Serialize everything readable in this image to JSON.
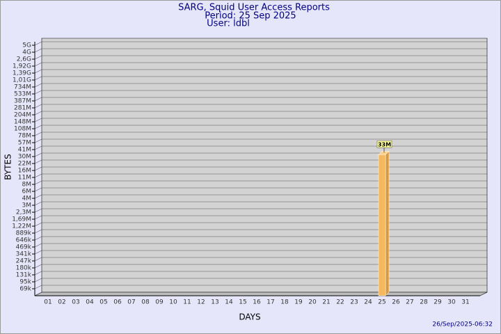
{
  "chart_data": {
    "type": "bar",
    "title": "SARG, Squid User Access Reports",
    "subtitle": [
      "Period: 25 Sep 2025",
      "User: ldbl"
    ],
    "x_label": "DAYS",
    "y_label": "BYTES",
    "footer": "26/Sep/2025-06:32",
    "categories": [
      "01",
      "02",
      "03",
      "04",
      "05",
      "06",
      "07",
      "08",
      "09",
      "10",
      "11",
      "12",
      "13",
      "14",
      "15",
      "16",
      "17",
      "18",
      "19",
      "20",
      "21",
      "22",
      "23",
      "24",
      "25",
      "26",
      "27",
      "28",
      "29",
      "30",
      "31"
    ],
    "values": [
      null,
      null,
      null,
      null,
      null,
      null,
      null,
      null,
      null,
      null,
      null,
      null,
      null,
      null,
      null,
      null,
      null,
      null,
      null,
      null,
      null,
      null,
      null,
      null,
      33000000,
      null,
      null,
      null,
      null,
      null,
      null
    ],
    "value_labels": [
      null,
      null,
      null,
      null,
      null,
      null,
      null,
      null,
      null,
      null,
      null,
      null,
      null,
      null,
      null,
      null,
      null,
      null,
      null,
      null,
      null,
      null,
      null,
      null,
      "33M",
      null,
      null,
      null,
      null,
      null,
      null
    ],
    "color": "#f5b85c",
    "ylim": [
      0,
      5000000000
    ],
    "yticks": [
      {
        "value": 69000,
        "label": "69k"
      },
      {
        "value": 95000,
        "label": "95k"
      },
      {
        "value": 131000,
        "label": "131k"
      },
      {
        "value": 180000,
        "label": "180k"
      },
      {
        "value": 247000,
        "label": "247k"
      },
      {
        "value": 341000,
        "label": "341k"
      },
      {
        "value": 469000,
        "label": "469k"
      },
      {
        "value": 646000,
        "label": "646k"
      },
      {
        "value": 889000,
        "label": "889k"
      },
      {
        "value": 1220000,
        "label": "1,22M"
      },
      {
        "value": 1690000,
        "label": "1,69M"
      },
      {
        "value": 2300000,
        "label": "2,3M"
      },
      {
        "value": 3000000,
        "label": "3M"
      },
      {
        "value": 4000000,
        "label": "4M"
      },
      {
        "value": 6000000,
        "label": "6M"
      },
      {
        "value": 8000000,
        "label": "8M"
      },
      {
        "value": 11000000,
        "label": "11M"
      },
      {
        "value": 16000000,
        "label": "16M"
      },
      {
        "value": 22000000,
        "label": "22M"
      },
      {
        "value": 30000000,
        "label": "30M"
      },
      {
        "value": 41000000,
        "label": "41M"
      },
      {
        "value": 57000000,
        "label": "57M"
      },
      {
        "value": 78000000,
        "label": "78M"
      },
      {
        "value": 108000000,
        "label": "108M"
      },
      {
        "value": 148000000,
        "label": "148M"
      },
      {
        "value": 204000000,
        "label": "204M"
      },
      {
        "value": 281000000,
        "label": "281M"
      },
      {
        "value": 387000000,
        "label": "387M"
      },
      {
        "value": 533000000,
        "label": "533M"
      },
      {
        "value": 734000000,
        "label": "734M"
      },
      {
        "value": 1010000000,
        "label": "1,01G"
      },
      {
        "value": 1390000000,
        "label": "1,39G"
      },
      {
        "value": 1920000000,
        "label": "1,92G"
      },
      {
        "value": 2600000000,
        "label": "2,6G"
      },
      {
        "value": 4000000000,
        "label": "4G"
      },
      {
        "value": 5000000000,
        "label": "5G"
      }
    ],
    "grid": true
  }
}
